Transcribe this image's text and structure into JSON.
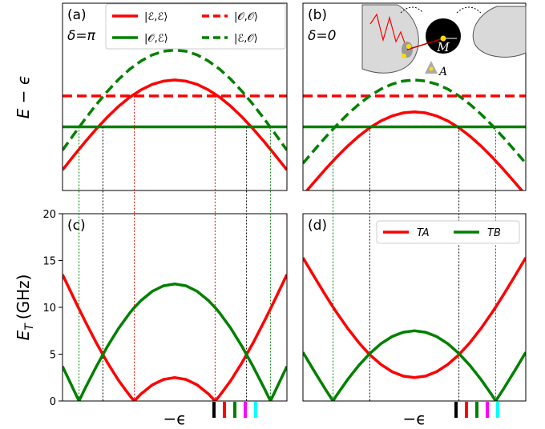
{
  "chart_data": [
    {
      "type": "line",
      "panel_label": "(a)",
      "annotation": "δ=π",
      "y_label": "E − ϵ",
      "x": [
        -1,
        -0.9,
        -0.8,
        -0.7,
        -0.6,
        -0.5,
        -0.4,
        -0.3,
        -0.2,
        -0.1,
        0,
        0.1,
        0.2,
        0.3,
        0.4,
        0.5,
        0.6,
        0.7,
        0.8,
        0.9,
        1
      ],
      "xlim": [
        -1,
        1
      ],
      "ylim": [
        0,
        20
      ],
      "legend": "upper right",
      "series": [
        {
          "name": "|ℰ,ℰ⟩",
          "color": "#ff0000",
          "linestyle": "solid",
          "values": [
            2.2,
            3.7,
            5.17,
            6.56,
            7.84,
            8.99,
            9.97,
            10.75,
            11.33,
            11.68,
            11.8,
            11.68,
            11.33,
            10.75,
            9.97,
            8.99,
            7.84,
            6.56,
            5.17,
            3.7,
            2.2
          ]
        },
        {
          "name": "|𝒪,ℰ⟩",
          "color": "#008000",
          "linestyle": "solid",
          "values": [
            6.8,
            6.8,
            6.8,
            6.8,
            6.8,
            6.8,
            6.8,
            6.8,
            6.8,
            6.8,
            6.8,
            6.8,
            6.8,
            6.8,
            6.8,
            6.8,
            6.8,
            6.8,
            6.8,
            6.8,
            6.8
          ]
        },
        {
          "name": "|𝒪,𝒪⟩",
          "color": "#ff0000",
          "linestyle": "dashed",
          "values": [
            10.1,
            10.1,
            10.1,
            10.1,
            10.1,
            10.1,
            10.1,
            10.1,
            10.1,
            10.1,
            10.1,
            10.1,
            10.1,
            10.1,
            10.1,
            10.1,
            10.1,
            10.1,
            10.1,
            10.1,
            10.1
          ]
        },
        {
          "name": "|ℰ,𝒪⟩",
          "color": "#008000",
          "linestyle": "dashed",
          "values": [
            4.3,
            5.97,
            7.61,
            9.16,
            10.59,
            11.87,
            12.96,
            13.83,
            14.48,
            14.87,
            15,
            14.87,
            14.48,
            13.83,
            12.96,
            11.87,
            10.59,
            9.16,
            7.61,
            5.97,
            4.3
          ]
        }
      ],
      "vlines": [
        {
          "x": -0.853,
          "y_top": 6.8,
          "color": "#008000"
        },
        {
          "x": -0.64,
          "y_top": 6.8,
          "color": "#000000"
        },
        {
          "x": -0.36,
          "y_top": 10.1,
          "color": "#ff0000"
        },
        {
          "x": 0.36,
          "y_top": 10.1,
          "color": "#ff0000"
        },
        {
          "x": 0.64,
          "y_top": 6.8,
          "color": "#000000"
        },
        {
          "x": 0.853,
          "y_top": 6.8,
          "color": "#008000"
        }
      ]
    },
    {
      "type": "line",
      "panel_label": "(b)",
      "annotation": "δ=0",
      "inset_labels": [
        "M",
        "A"
      ],
      "x": [
        -1,
        -0.9,
        -0.8,
        -0.7,
        -0.6,
        -0.5,
        -0.4,
        -0.3,
        -0.2,
        -0.1,
        0,
        0.1,
        0.2,
        0.3,
        0.4,
        0.5,
        0.6,
        0.7,
        0.8,
        0.9,
        1
      ],
      "xlim": [
        -1,
        1
      ],
      "ylim": [
        0,
        20
      ],
      "series": [
        {
          "color": "#ff0000",
          "linestyle": "solid",
          "values": [
            -0.5,
            0.89,
            2.25,
            3.54,
            4.73,
            5.79,
            6.7,
            7.43,
            7.96,
            8.29,
            8.4,
            8.29,
            7.96,
            7.43,
            6.7,
            5.79,
            4.73,
            3.54,
            2.25,
            0.89,
            -0.5
          ]
        },
        {
          "color": "#008000",
          "linestyle": "solid",
          "values": [
            6.8,
            6.8,
            6.8,
            6.8,
            6.8,
            6.8,
            6.8,
            6.8,
            6.8,
            6.8,
            6.8,
            6.8,
            6.8,
            6.8,
            6.8,
            6.8,
            6.8,
            6.8,
            6.8,
            6.8,
            6.8
          ]
        },
        {
          "color": "#ff0000",
          "linestyle": "dashed",
          "values": [
            10.1,
            10.1,
            10.1,
            10.1,
            10.1,
            10.1,
            10.1,
            10.1,
            10.1,
            10.1,
            10.1,
            10.1,
            10.1,
            10.1,
            10.1,
            10.1,
            10.1,
            10.1,
            10.1,
            10.1,
            10.1
          ]
        },
        {
          "color": "#008000",
          "linestyle": "dashed",
          "values": [
            2.9,
            4.29,
            5.65,
            6.94,
            8.13,
            9.19,
            10.1,
            10.83,
            11.36,
            11.69,
            11.8,
            11.69,
            11.36,
            10.83,
            10.1,
            9.19,
            8.13,
            6.94,
            5.65,
            4.29,
            2.9
          ]
        }
      ],
      "vlines": [
        {
          "x": -0.73,
          "y_top": 6.8,
          "color": "#008000"
        },
        {
          "x": -0.4,
          "y_top": 6.8,
          "color": "#000000"
        },
        {
          "x": 0.4,
          "y_top": 6.8,
          "color": "#000000"
        },
        {
          "x": 0.73,
          "y_top": 6.8,
          "color": "#008000"
        }
      ]
    },
    {
      "type": "line",
      "panel_label": "(c)",
      "y_label": {
        "main": "E",
        "sub": "T",
        "unit": "(GHz)"
      },
      "x_label": "−ϵ",
      "x": [
        -1,
        -0.9,
        -0.853,
        -0.8,
        -0.7,
        -0.6,
        -0.5,
        -0.4,
        -0.36,
        -0.3,
        -0.2,
        -0.1,
        0,
        0.1,
        0.2,
        0.3,
        0.36,
        0.4,
        0.5,
        0.6,
        0.7,
        0.8,
        0.853,
        0.9,
        1
      ],
      "xlim": [
        -1,
        1
      ],
      "ylim": [
        0,
        20
      ],
      "yticks": [
        0,
        5,
        10,
        15,
        20
      ],
      "series": [
        {
          "color": "#ff0000",
          "linestyle": "solid",
          "values": [
            13.5,
            11,
            9.84,
            8.56,
            6.24,
            4.1,
            2.19,
            0.56,
            0,
            0.76,
            1.72,
            2.3,
            2.5,
            2.3,
            1.72,
            0.76,
            0,
            0.56,
            2.19,
            4.1,
            6.24,
            8.56,
            9.84,
            11,
            13.5
          ]
        },
        {
          "color": "#008000",
          "linestyle": "solid",
          "values": [
            3.7,
            1.17,
            0,
            1.31,
            3.65,
            5.82,
            7.76,
            9.41,
            9.98,
            10.73,
            11.71,
            12.3,
            12.5,
            12.3,
            11.71,
            10.73,
            9.98,
            9.41,
            7.76,
            5.82,
            3.65,
            1.31,
            0,
            1.17,
            3.7
          ]
        }
      ]
    },
    {
      "type": "line",
      "panel_label": "(d)",
      "x_label": "−ϵ",
      "legend": "upper right",
      "x": [
        -1,
        -0.9,
        -0.8,
        -0.73,
        -0.7,
        -0.6,
        -0.5,
        -0.4,
        -0.3,
        -0.2,
        -0.1,
        0,
        0.1,
        0.2,
        0.3,
        0.4,
        0.5,
        0.6,
        0.7,
        0.73,
        0.8,
        0.9,
        1
      ],
      "xlim": [
        -1,
        1
      ],
      "ylim": [
        0,
        20
      ],
      "series": [
        {
          "name": "TA",
          "color": "#ff0000",
          "linestyle": "solid",
          "values": [
            15.3,
            13.3,
            11.34,
            10.03,
            9.49,
            7.78,
            6.25,
            4.94,
            3.9,
            3.13,
            2.66,
            2.5,
            2.66,
            3.13,
            3.9,
            4.94,
            6.25,
            7.78,
            9.49,
            10.03,
            11.34,
            13.3,
            15.3
          ]
        },
        {
          "name": "TB",
          "color": "#008000",
          "linestyle": "solid",
          "values": [
            5.2,
            3.21,
            1.28,
            0,
            0.57,
            2.27,
            3.78,
            5.07,
            6.12,
            6.88,
            7.34,
            7.5,
            7.34,
            6.88,
            6.12,
            5.07,
            3.78,
            2.27,
            0.57,
            0,
            1.28,
            3.21,
            5.2
          ]
        }
      ]
    }
  ]
}
